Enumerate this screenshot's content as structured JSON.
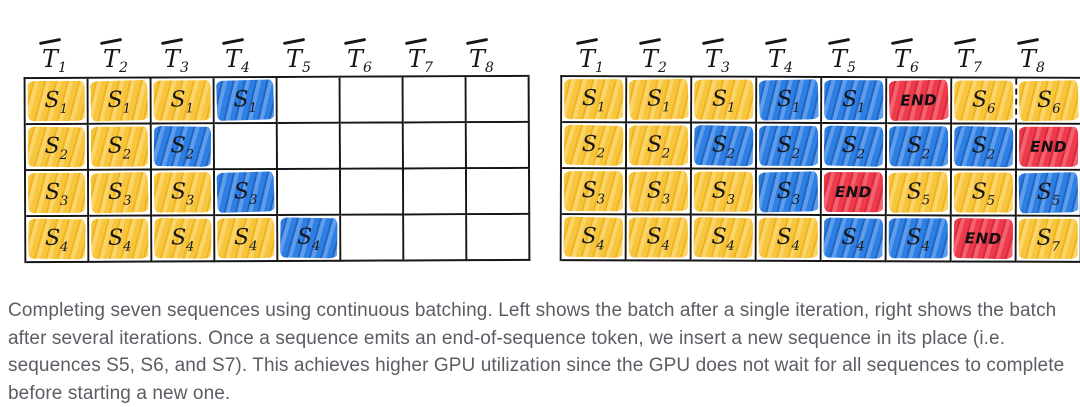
{
  "figure": {
    "colors": {
      "yellow": "#F8C63E",
      "blue": "#2E7FE3",
      "red": "#EE3B4C",
      "border": "#161616",
      "caption_text": "#5A5D63"
    },
    "grids": [
      {
        "name": "batch-after-single-iteration",
        "headers": [
          "T1",
          "T2",
          "T3",
          "T4",
          "T5",
          "T6",
          "T7",
          "T8"
        ],
        "rows": [
          [
            {
              "label": "S1",
              "color": "yellow"
            },
            {
              "label": "S1",
              "color": "yellow"
            },
            {
              "label": "S1",
              "color": "yellow"
            },
            {
              "label": "S1",
              "color": "blue"
            },
            null,
            null,
            null,
            null
          ],
          [
            {
              "label": "S2",
              "color": "yellow"
            },
            {
              "label": "S2",
              "color": "yellow"
            },
            {
              "label": "S2",
              "color": "blue"
            },
            null,
            null,
            null,
            null,
            null
          ],
          [
            {
              "label": "S3",
              "color": "yellow"
            },
            {
              "label": "S3",
              "color": "yellow"
            },
            {
              "label": "S3",
              "color": "yellow"
            },
            {
              "label": "S3",
              "color": "blue"
            },
            null,
            null,
            null,
            null
          ],
          [
            {
              "label": "S4",
              "color": "yellow"
            },
            {
              "label": "S4",
              "color": "yellow"
            },
            {
              "label": "S4",
              "color": "yellow"
            },
            {
              "label": "S4",
              "color": "yellow"
            },
            {
              "label": "S4",
              "color": "blue"
            },
            null,
            null,
            null
          ]
        ]
      },
      {
        "name": "batch-after-several-iterations",
        "headers": [
          "T1",
          "T2",
          "T3",
          "T4",
          "T5",
          "T6",
          "T7",
          "T8"
        ],
        "rows": [
          [
            {
              "label": "S1",
              "color": "yellow"
            },
            {
              "label": "S1",
              "color": "yellow"
            },
            {
              "label": "S1",
              "color": "yellow"
            },
            {
              "label": "S1",
              "color": "blue"
            },
            {
              "label": "S1",
              "color": "blue"
            },
            {
              "label": "END",
              "color": "red"
            },
            {
              "label": "S6",
              "color": "yellow",
              "dashed_right": true
            },
            {
              "label": "S6",
              "color": "yellow"
            }
          ],
          [
            {
              "label": "S2",
              "color": "yellow"
            },
            {
              "label": "S2",
              "color": "yellow"
            },
            {
              "label": "S2",
              "color": "blue"
            },
            {
              "label": "S2",
              "color": "blue"
            },
            {
              "label": "S2",
              "color": "blue"
            },
            {
              "label": "S2",
              "color": "blue"
            },
            {
              "label": "S2",
              "color": "blue"
            },
            {
              "label": "END",
              "color": "red"
            }
          ],
          [
            {
              "label": "S3",
              "color": "yellow"
            },
            {
              "label": "S3",
              "color": "yellow"
            },
            {
              "label": "S3",
              "color": "yellow"
            },
            {
              "label": "S3",
              "color": "blue"
            },
            {
              "label": "END",
              "color": "red"
            },
            {
              "label": "S5",
              "color": "yellow"
            },
            {
              "label": "S5",
              "color": "yellow"
            },
            {
              "label": "S5",
              "color": "blue"
            }
          ],
          [
            {
              "label": "S4",
              "color": "yellow"
            },
            {
              "label": "S4",
              "color": "yellow"
            },
            {
              "label": "S4",
              "color": "yellow"
            },
            {
              "label": "S4",
              "color": "yellow"
            },
            {
              "label": "S4",
              "color": "blue"
            },
            {
              "label": "S4",
              "color": "blue"
            },
            {
              "label": "END",
              "color": "red"
            },
            {
              "label": "S7",
              "color": "yellow"
            }
          ]
        ]
      }
    ],
    "caption": "Completing seven sequences using continuous batching. Left shows the batch after a single iteration, right shows the batch after several iterations. Once a sequence emits an end-of-sequence token, we insert a new sequence in its place (i.e. sequences S5, S6, and S7). This achieves higher GPU utilization since the GPU does not wait for all sequences to complete before starting a new one."
  }
}
